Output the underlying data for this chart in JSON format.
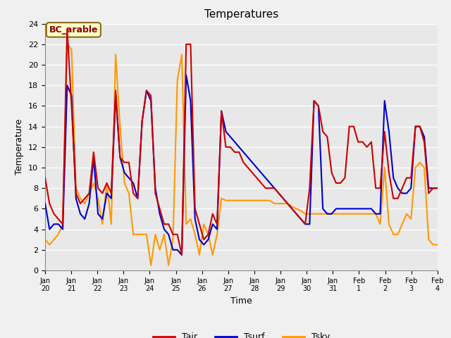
{
  "title": "Temperatures",
  "xlabel": "Time",
  "ylabel": "Temperature",
  "annotation": "BC_arable",
  "ylim": [
    0,
    24
  ],
  "fig_facecolor": "#f0f0f0",
  "axes_facecolor": "#e8e8e8",
  "grid_color": "white",
  "line_colors": {
    "Tair": "#cc0000",
    "Tsurf": "#0000cc",
    "Tsky": "#ff9900"
  },
  "xtick_labels": [
    "Jan 20",
    "Jan 21",
    "Jan 22",
    "Jan 23",
    "Jan 24",
    "Jan 25",
    "Jan 26",
    "Jan 27",
    "Jan 28",
    "Jan 29",
    "Jan 30",
    "Jan 31",
    "Feb 1",
    "Feb 2",
    "Feb 3",
    "Feb 4"
  ],
  "tair": [
    9.0,
    6.5,
    5.5,
    5.0,
    4.5,
    23.5,
    16.0,
    7.5,
    6.5,
    7.0,
    7.5,
    11.5,
    8.0,
    7.5,
    8.5,
    7.5,
    17.5,
    11.0,
    10.5,
    10.5,
    7.5,
    7.0,
    14.5,
    17.5,
    17.0,
    7.5,
    6.0,
    4.5,
    4.5,
    3.5,
    3.5,
    1.5,
    22.0,
    22.0,
    6.0,
    4.5,
    3.0,
    3.5,
    5.5,
    4.5,
    15.5,
    12.0,
    12.0,
    11.5,
    11.5,
    10.5,
    10.0,
    9.5,
    9.0,
    8.5,
    8.0,
    8.0,
    8.0,
    7.5,
    7.0,
    6.5,
    6.0,
    5.5,
    5.0,
    4.5,
    8.0,
    16.5,
    16.0,
    13.5,
    13.0,
    9.5,
    8.5,
    8.5,
    9.0,
    14.0,
    14.0,
    12.5,
    12.5,
    12.0,
    12.5,
    8.0,
    8.0,
    13.5,
    9.5,
    7.0,
    7.0,
    8.0,
    9.0,
    9.0,
    14.0,
    14.0,
    12.5,
    7.5,
    8.0,
    8.0
  ],
  "tsurf": [
    6.5,
    4.0,
    4.5,
    4.5,
    4.0,
    18.0,
    17.0,
    7.0,
    5.5,
    5.0,
    6.5,
    11.0,
    5.5,
    5.0,
    7.5,
    7.0,
    17.0,
    11.0,
    9.5,
    9.0,
    8.5,
    7.0,
    14.5,
    17.5,
    16.5,
    8.0,
    5.5,
    4.0,
    3.5,
    2.0,
    2.0,
    1.5,
    19.0,
    16.5,
    5.0,
    3.0,
    2.5,
    3.0,
    4.5,
    4.0,
    15.5,
    13.5,
    13.0,
    12.5,
    12.0,
    11.5,
    11.0,
    10.5,
    10.0,
    9.5,
    9.0,
    8.5,
    8.0,
    7.5,
    7.0,
    6.5,
    6.0,
    5.5,
    5.0,
    4.5,
    4.5,
    16.5,
    16.0,
    6.0,
    5.5,
    5.5,
    6.0,
    6.0,
    6.0,
    6.0,
    6.0,
    6.0,
    6.0,
    6.0,
    6.0,
    5.5,
    5.5,
    16.5,
    13.5,
    9.0,
    8.0,
    7.5,
    7.5,
    8.0,
    14.0,
    14.0,
    13.0,
    8.0,
    8.0,
    8.0
  ],
  "tsky": [
    3.0,
    2.5,
    3.0,
    3.5,
    4.5,
    22.0,
    21.5,
    8.0,
    7.0,
    6.5,
    7.5,
    8.5,
    7.0,
    4.5,
    8.5,
    4.5,
    21.0,
    14.0,
    8.5,
    7.5,
    3.5,
    3.5,
    3.5,
    3.5,
    0.5,
    3.5,
    2.0,
    3.5,
    0.5,
    3.0,
    18.5,
    21.0,
    4.5,
    5.0,
    3.5,
    1.5,
    4.5,
    3.5,
    1.5,
    3.5,
    7.0,
    6.8,
    6.8,
    6.8,
    6.8,
    6.8,
    6.8,
    6.8,
    6.8,
    6.8,
    6.8,
    6.8,
    6.5,
    6.5,
    6.5,
    6.5,
    6.2,
    6.0,
    5.8,
    5.5,
    5.5,
    5.5,
    5.5,
    5.5,
    5.5,
    5.5,
    5.5,
    5.5,
    5.5,
    5.5,
    5.5,
    5.5,
    5.5,
    5.5,
    5.5,
    5.5,
    4.5,
    10.0,
    4.5,
    3.5,
    3.5,
    4.5,
    5.5,
    5.0,
    10.0,
    10.5,
    10.0,
    3.0,
    2.5,
    2.5
  ]
}
